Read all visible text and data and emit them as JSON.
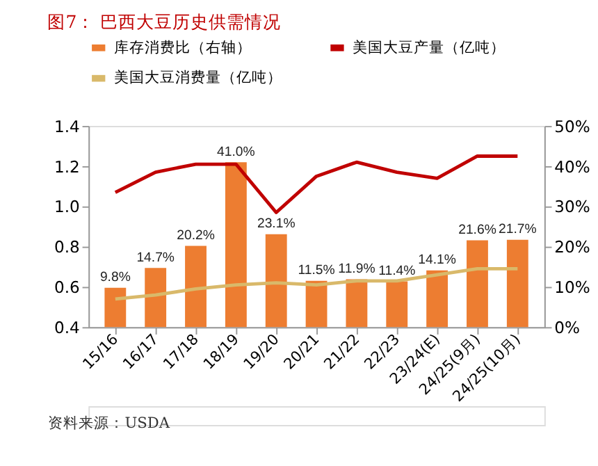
{
  "chart_data": {
    "type": "bar",
    "title": "图7：  巴西大豆历史供需情况",
    "categories": [
      "15/16",
      "16/17",
      "17/18",
      "18/19",
      "19/20",
      "20/21",
      "21/22",
      "22/23",
      "23/24(E)",
      "24/25(9月)",
      "24/25(10月)"
    ],
    "series": [
      {
        "name": "库存消费比（右轴）",
        "axis": "y2",
        "color": "#ed7d31",
        "values": [
          9.8,
          14.7,
          20.2,
          41.0,
          23.1,
          11.5,
          11.9,
          11.4,
          14.1,
          21.6,
          21.7
        ],
        "value_labels": [
          "9.8%",
          "14.7%",
          "20.2%",
          "41.0%",
          "23.1%",
          "11.5%",
          "11.9%",
          "11.4%",
          "14.1%",
          "21.6%",
          "21.7%"
        ]
      },
      {
        "name": "美国大豆产量（亿吨）",
        "type": "line",
        "color": "#c00000",
        "values": [
          1.07,
          1.17,
          1.21,
          1.21,
          0.97,
          1.15,
          1.22,
          1.17,
          1.14,
          1.25,
          1.25
        ]
      },
      {
        "name": "美国大豆消费量（亿吨）",
        "type": "line",
        "color": "#d9b96a",
        "values": [
          0.54,
          0.56,
          0.59,
          0.61,
          0.62,
          0.61,
          0.63,
          0.63,
          0.66,
          0.69,
          0.69
        ]
      }
    ],
    "ylim": [
      0.4,
      1.4
    ],
    "yticks": [
      {
        "value": 0.4,
        "label": "0.4"
      },
      {
        "value": 0.6,
        "label": "0.6"
      },
      {
        "value": 0.8,
        "label": "0.8"
      },
      {
        "value": 1.0,
        "label": "1.0"
      },
      {
        "value": 1.2,
        "label": "1.2"
      },
      {
        "value": 1.4,
        "label": "1.4"
      }
    ],
    "y2lim": [
      0,
      50
    ],
    "y2ticks": [
      {
        "value": 0,
        "label": "0%"
      },
      {
        "value": 10,
        "label": "10%"
      },
      {
        "value": 20,
        "label": "20%"
      },
      {
        "value": 30,
        "label": "30%"
      },
      {
        "value": 40,
        "label": "40%"
      },
      {
        "value": 50,
        "label": "50%"
      }
    ],
    "legend": "top",
    "grid": false,
    "marker": "none",
    "line_style": "solid",
    "annotations": [
      "资料来源：USDA"
    ]
  }
}
